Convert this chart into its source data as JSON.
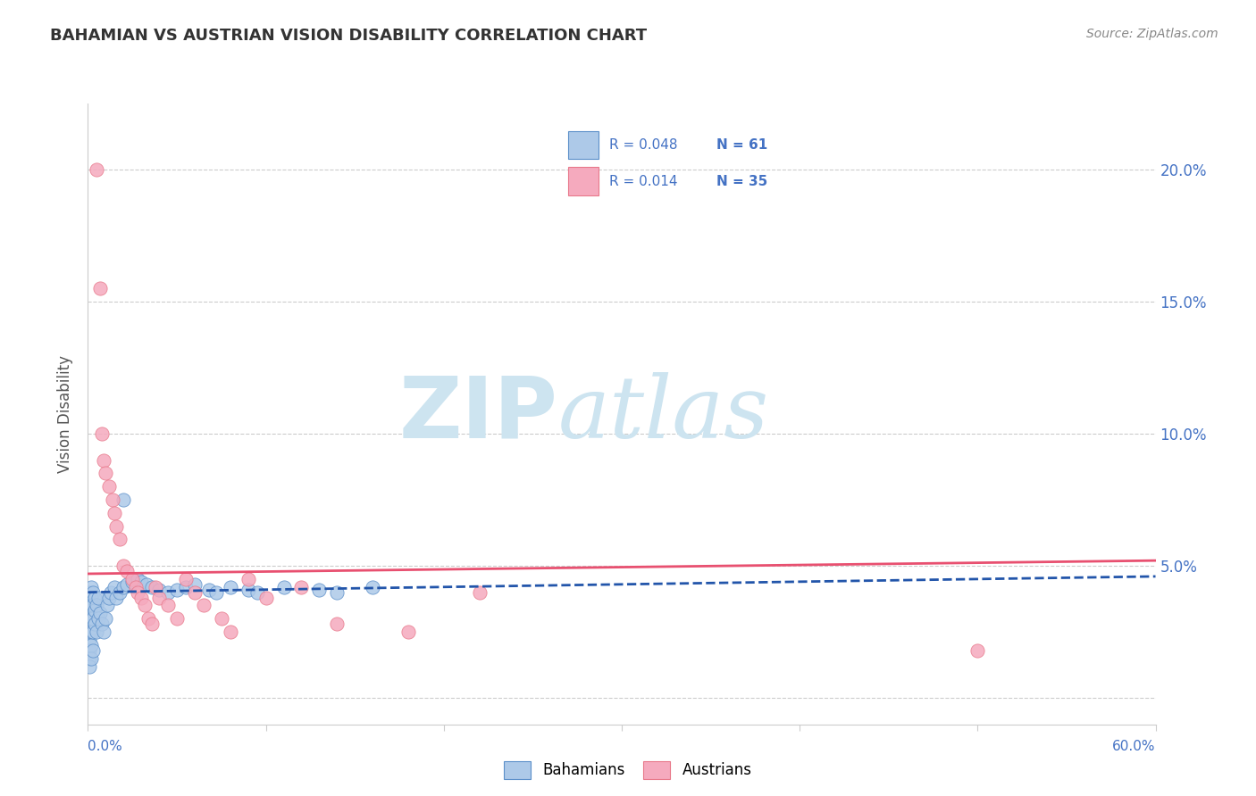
{
  "title": "BAHAMIAN VS AUSTRIAN VISION DISABILITY CORRELATION CHART",
  "source": "Source: ZipAtlas.com",
  "ylabel": "Vision Disability",
  "xlim": [
    0.0,
    0.6
  ],
  "ylim": [
    -0.01,
    0.225
  ],
  "yticks": [
    0.0,
    0.05,
    0.1,
    0.15,
    0.2
  ],
  "ytick_labels": [
    "",
    "5.0%",
    "10.0%",
    "15.0%",
    "20.0%"
  ],
  "legend_r1_r": "R = 0.048",
  "legend_r1_n": "N = 61",
  "legend_r2_r": "R = 0.014",
  "legend_r2_n": "N = 35",
  "bahamian_color": "#adc9e8",
  "austrian_color": "#f5aabe",
  "bahamian_edge_color": "#5b8fc9",
  "austrian_edge_color": "#e8788a",
  "bahamian_trend_color": "#2255aa",
  "austrian_trend_color": "#e85070",
  "watermark_color": "#cde4f0",
  "background_color": "#ffffff",
  "grid_color": "#cccccc",
  "tick_color": "#4472c4",
  "title_color": "#333333",
  "source_color": "#888888",
  "ylabel_color": "#555555",
  "bah_trend_y0": 0.04,
  "bah_trend_y1": 0.046,
  "aut_trend_y0": 0.047,
  "aut_trend_y1": 0.052,
  "bahamians_x": [
    0.001,
    0.001,
    0.001,
    0.001,
    0.001,
    0.001,
    0.001,
    0.001,
    0.001,
    0.001,
    0.002,
    0.002,
    0.002,
    0.002,
    0.002,
    0.002,
    0.002,
    0.003,
    0.003,
    0.003,
    0.003,
    0.003,
    0.004,
    0.004,
    0.004,
    0.005,
    0.005,
    0.006,
    0.006,
    0.007,
    0.008,
    0.009,
    0.01,
    0.011,
    0.012,
    0.013,
    0.015,
    0.016,
    0.018,
    0.02,
    0.022,
    0.025,
    0.028,
    0.03,
    0.033,
    0.036,
    0.04,
    0.045,
    0.05,
    0.055,
    0.06,
    0.068,
    0.072,
    0.08,
    0.09,
    0.095,
    0.11,
    0.13,
    0.14,
    0.16,
    0.02
  ],
  "bahamians_y": [
    0.04,
    0.038,
    0.035,
    0.032,
    0.028,
    0.025,
    0.022,
    0.018,
    0.015,
    0.012,
    0.042,
    0.038,
    0.035,
    0.03,
    0.025,
    0.02,
    0.015,
    0.04,
    0.035,
    0.03,
    0.025,
    0.018,
    0.038,
    0.033,
    0.028,
    0.035,
    0.025,
    0.038,
    0.03,
    0.032,
    0.028,
    0.025,
    0.03,
    0.035,
    0.038,
    0.04,
    0.042,
    0.038,
    0.04,
    0.042,
    0.043,
    0.044,
    0.045,
    0.044,
    0.043,
    0.042,
    0.041,
    0.04,
    0.041,
    0.042,
    0.043,
    0.041,
    0.04,
    0.042,
    0.041,
    0.04,
    0.042,
    0.041,
    0.04,
    0.042,
    0.075
  ],
  "austrians_x": [
    0.005,
    0.007,
    0.008,
    0.009,
    0.01,
    0.012,
    0.014,
    0.015,
    0.016,
    0.018,
    0.02,
    0.022,
    0.025,
    0.027,
    0.028,
    0.03,
    0.032,
    0.034,
    0.036,
    0.038,
    0.04,
    0.045,
    0.05,
    0.055,
    0.06,
    0.065,
    0.075,
    0.08,
    0.09,
    0.1,
    0.12,
    0.14,
    0.18,
    0.22,
    0.5
  ],
  "austrians_y": [
    0.2,
    0.155,
    0.1,
    0.09,
    0.085,
    0.08,
    0.075,
    0.07,
    0.065,
    0.06,
    0.05,
    0.048,
    0.045,
    0.042,
    0.04,
    0.038,
    0.035,
    0.03,
    0.028,
    0.042,
    0.038,
    0.035,
    0.03,
    0.045,
    0.04,
    0.035,
    0.03,
    0.025,
    0.045,
    0.038,
    0.042,
    0.028,
    0.025,
    0.04,
    0.018
  ]
}
